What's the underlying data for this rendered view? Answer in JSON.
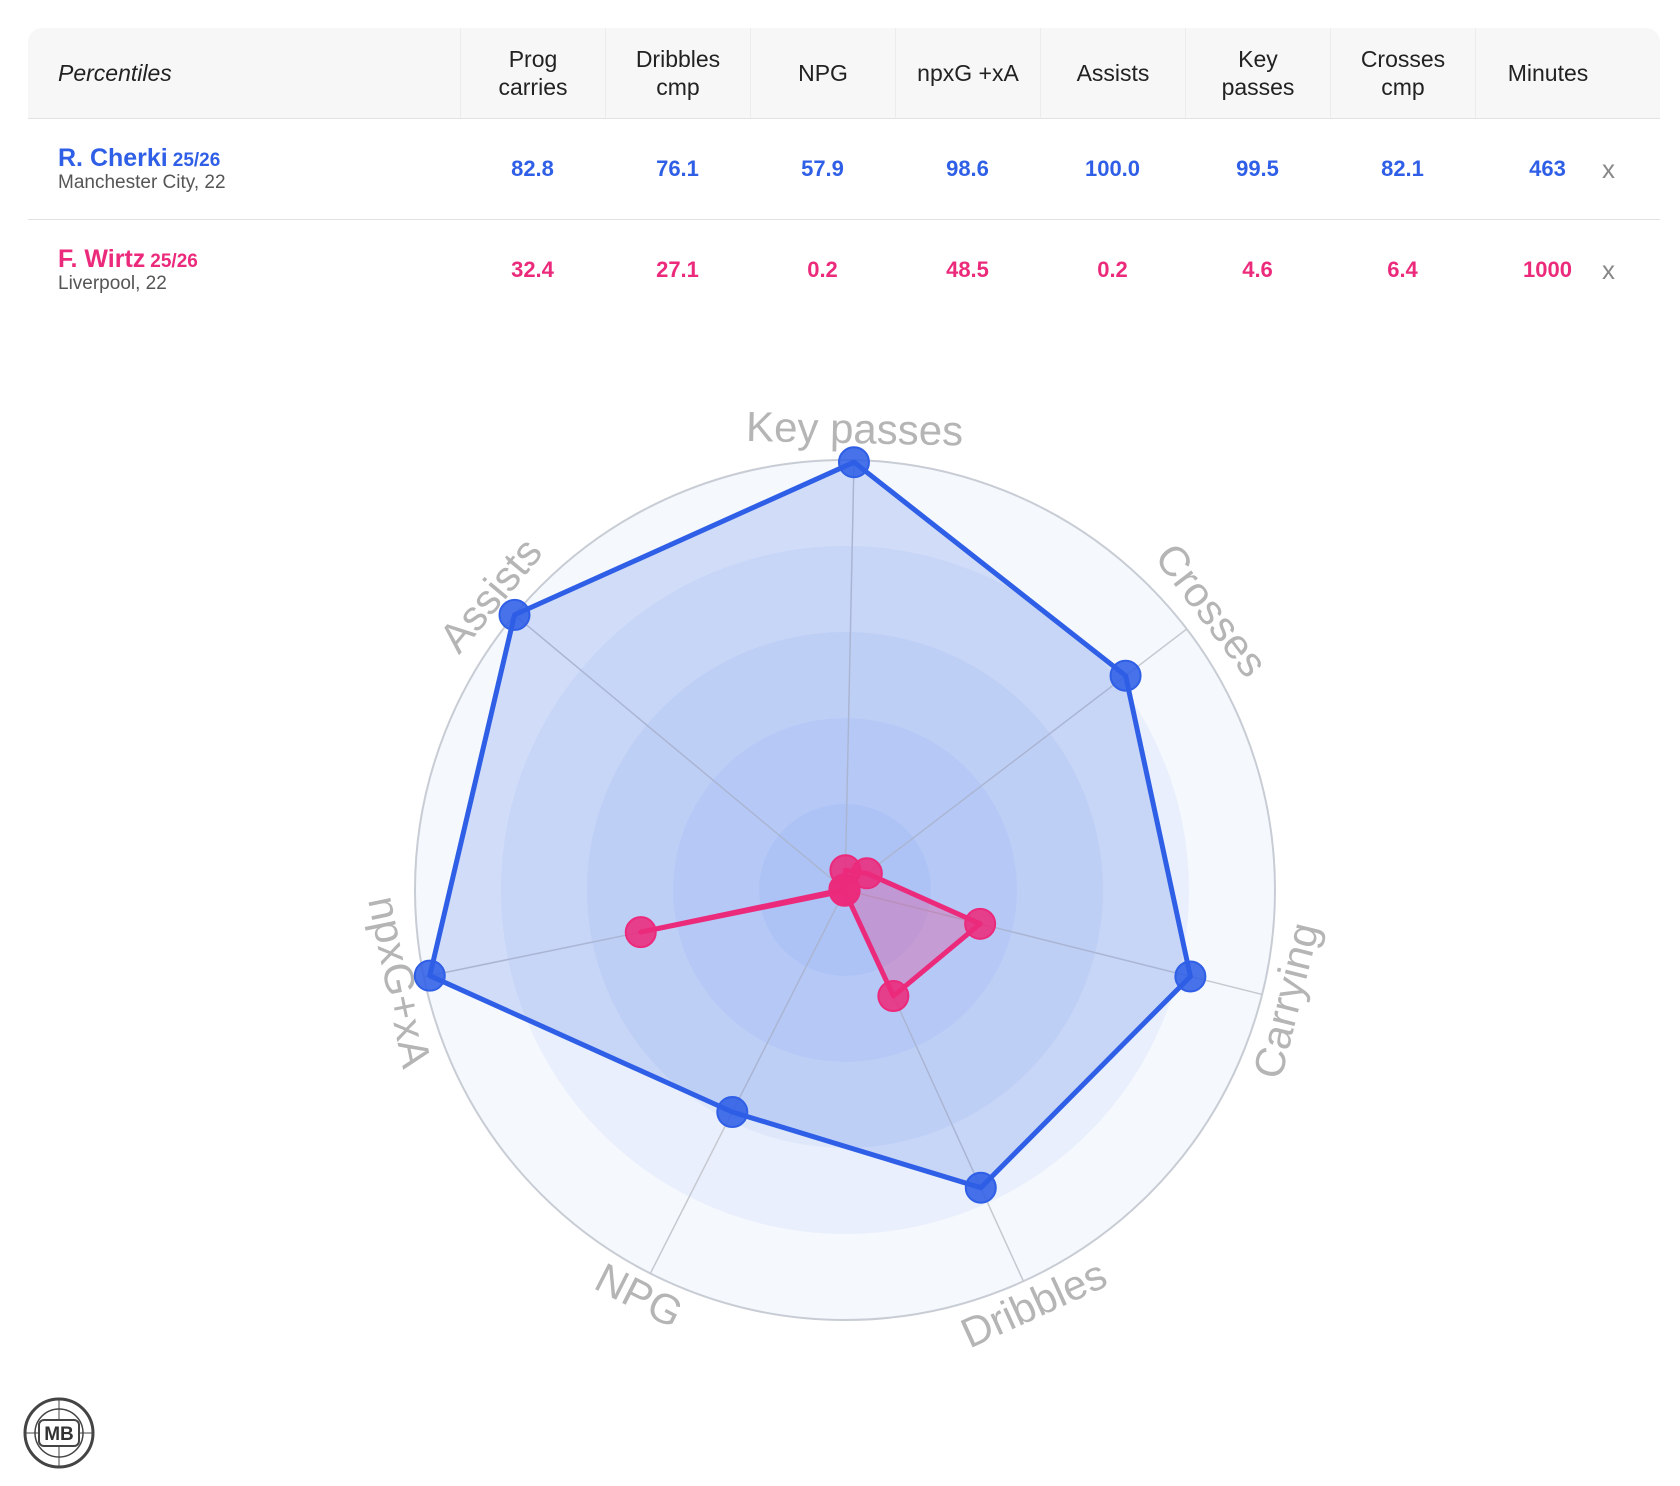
{
  "table": {
    "header_label": "Percentiles",
    "columns": [
      "Prog\ncarries",
      "Dribbles\ncmp",
      "NPG",
      "npxG +xA",
      "Assists",
      "Key\npasses",
      "Crosses\ncmp",
      "Minutes"
    ],
    "players": [
      {
        "name": "R. Cherki",
        "season": "25/26",
        "team": "Manchester City, 22",
        "color": "#2f5fe6",
        "values": [
          "82.8",
          "76.1",
          "57.9",
          "98.6",
          "100.0",
          "99.5",
          "82.1",
          "463"
        ],
        "remove_label": "x"
      },
      {
        "name": "F. Wirtz",
        "season": "25/26",
        "team": "Liverpool, 22",
        "color": "#ec2a7c",
        "values": [
          "32.4",
          "27.1",
          "0.2",
          "48.5",
          "0.2",
          "4.6",
          "6.4",
          "1000"
        ],
        "remove_label": "x"
      }
    ]
  },
  "chart_data": {
    "type": "radar",
    "axes": [
      "Key passes",
      "Crosses",
      "Carrying",
      "Dribbles",
      "NPG",
      "npxG+xA",
      "Assists"
    ],
    "rlim": [
      0,
      100
    ],
    "series": [
      {
        "name": "R. Cherki",
        "color": "#2f5fe6",
        "values": [
          99.5,
          82.1,
          82.8,
          76.1,
          57.9,
          98.6,
          100.0
        ]
      },
      {
        "name": "F. Wirtz",
        "color": "#ec2a7c",
        "values": [
          4.6,
          6.4,
          32.4,
          27.1,
          0.2,
          48.5,
          0.2
        ]
      }
    ]
  },
  "logo": {
    "text": "MB"
  }
}
